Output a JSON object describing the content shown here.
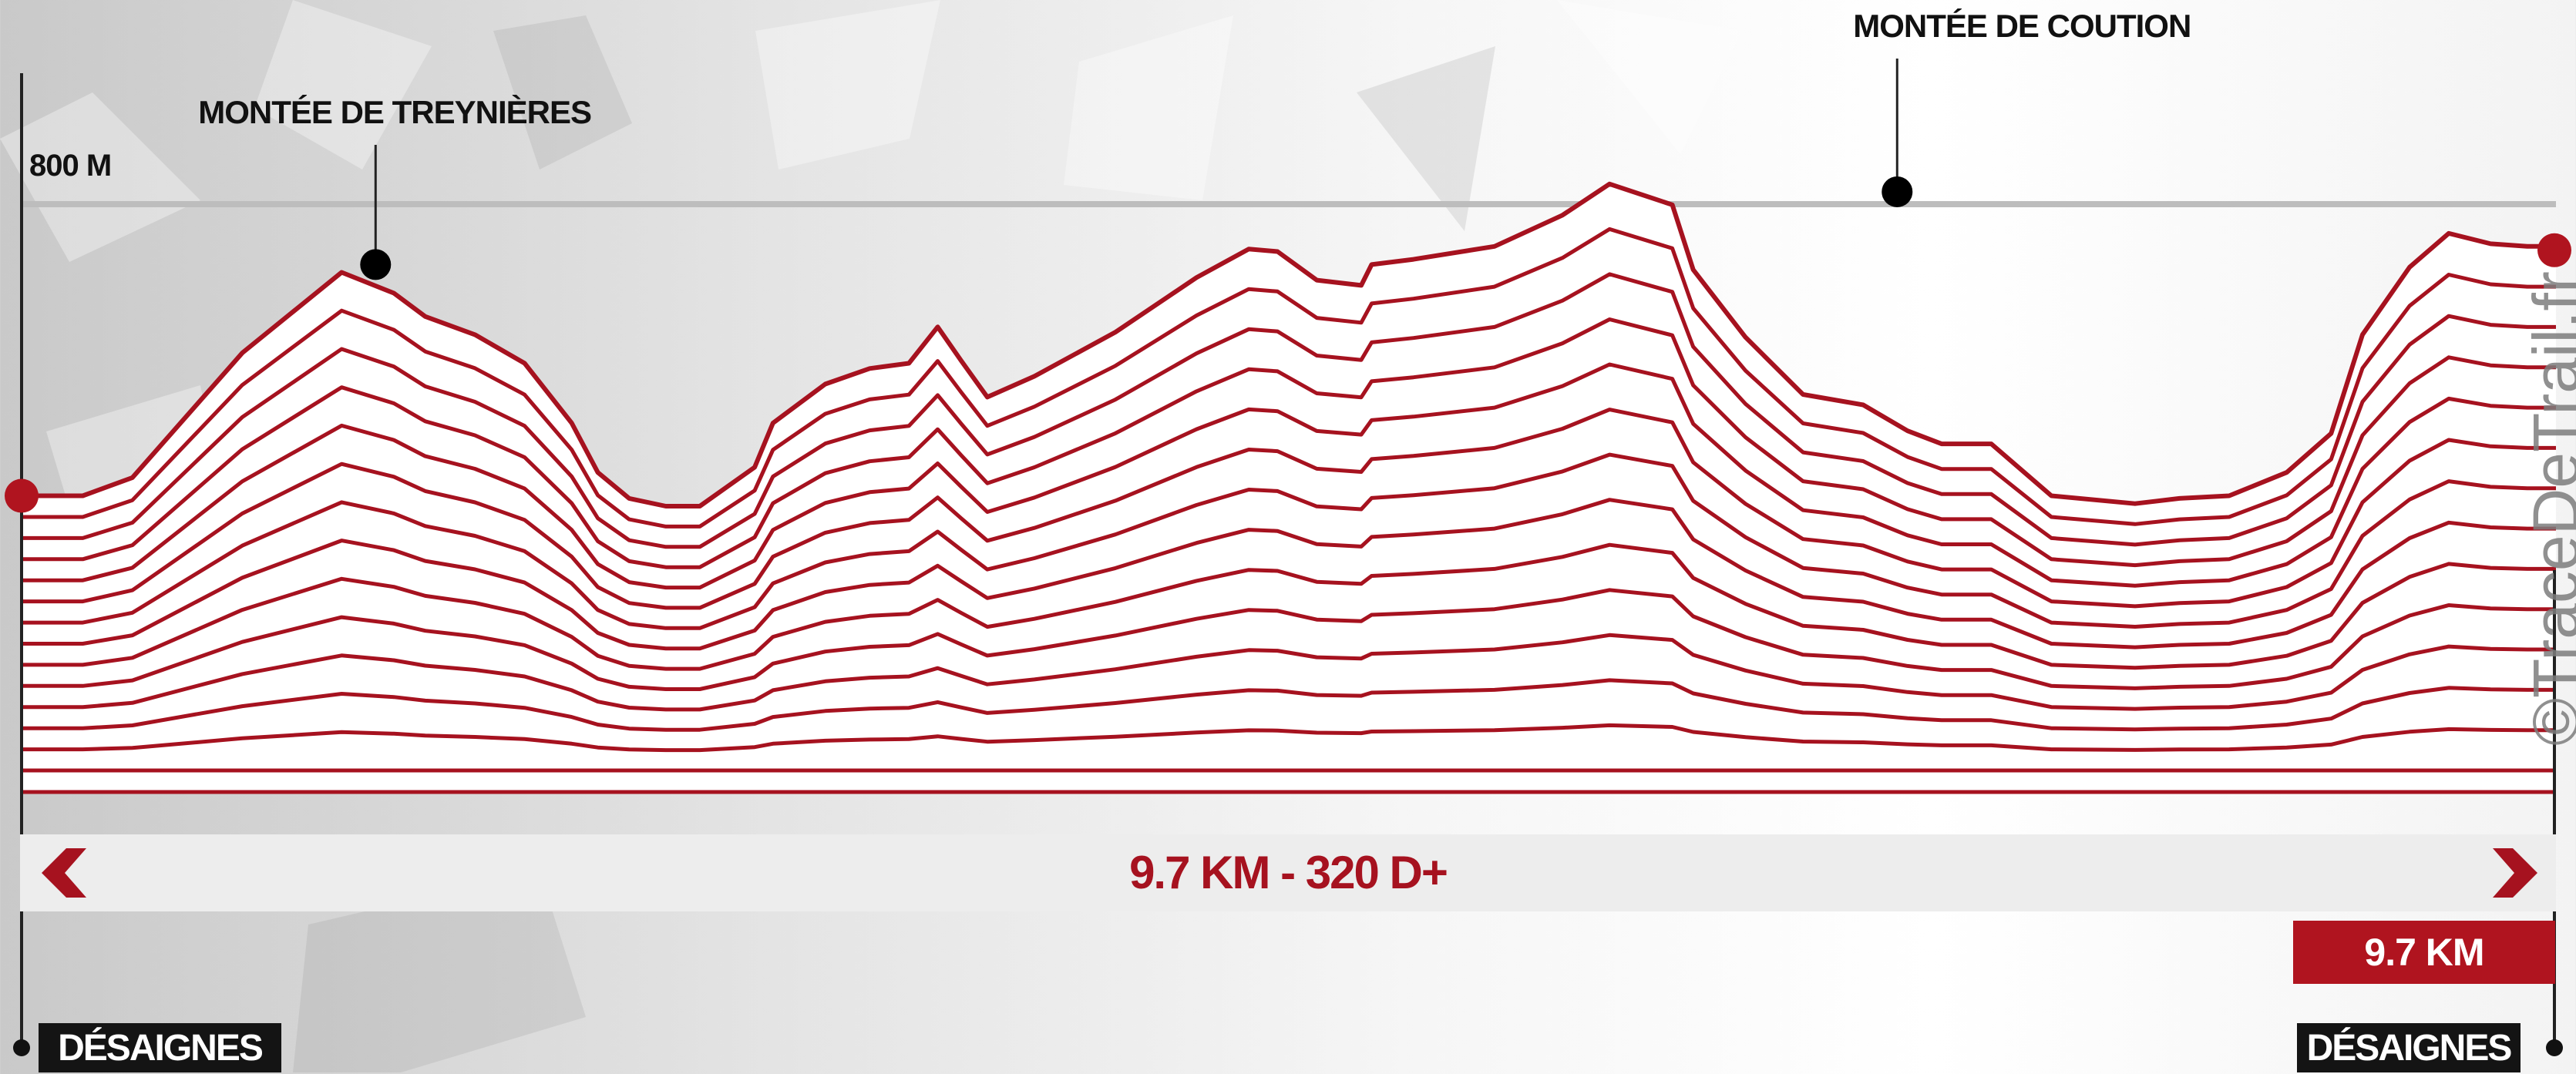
{
  "chart_data": {
    "type": "area",
    "title": "9.7 KM - 320 D+",
    "xunit": "km",
    "yunit": "m",
    "distance_label": "9.7 KM",
    "total_distance_km": 9.7,
    "elevation_gain_m": 320,
    "ytick_label": "800 M",
    "ytick_value": 800,
    "ylim": [
      570,
      817
    ],
    "xlim": [
      0,
      9.7
    ],
    "series": [
      {
        "x": [
          0,
          0.24,
          0.43,
          0.85,
          1.23,
          1.43,
          1.55,
          1.74,
          1.93,
          2.11,
          2.21,
          2.33,
          2.47,
          2.6,
          2.81,
          2.88,
          3.08,
          3.25,
          3.4,
          3.51,
          3.6,
          3.7,
          3.88,
          4.19,
          4.5,
          4.7,
          4.81,
          4.96,
          5.13,
          5.17,
          5.33,
          5.64,
          5.9,
          6.08,
          6.32,
          6.4,
          6.6,
          6.82,
          7.05,
          7.22,
          7.35,
          7.54,
          7.77,
          8.09,
          8.26,
          8.45,
          8.67,
          8.84,
          8.96,
          9.14,
          9.29,
          9.45,
          9.59,
          9.7
        ],
        "y": [
          684,
          684,
          691,
          739,
          770,
          762,
          753,
          746,
          735,
          712,
          693,
          683,
          680,
          680,
          695,
          712,
          727,
          733,
          735,
          749,
          736,
          722,
          730,
          747,
          768,
          779,
          778,
          767,
          765,
          773,
          775,
          780,
          792,
          804,
          796,
          771,
          745,
          723,
          719,
          709,
          704,
          704,
          684,
          681,
          683,
          684,
          693,
          708,
          746,
          772,
          785,
          781,
          780,
          780
        ]
      }
    ],
    "annotations": [
      {
        "label": "MONTÉE DE TREYNIÈRES",
        "x": 1.36,
        "y": 773
      },
      {
        "label": "MONTÉE DE COUTION",
        "x": 7.18,
        "y": 801
      }
    ],
    "start_point": "DÉSAIGNES",
    "end_point": "DÉSAIGNES",
    "line_color": "#a6121f",
    "accent_color": "#b0141f",
    "grid": false,
    "layers": 14
  },
  "nav": {
    "prev_icon": "chevron-left-icon",
    "next_icon": "chevron-right-icon"
  },
  "watermark": "©TraceDeTrail.fr"
}
